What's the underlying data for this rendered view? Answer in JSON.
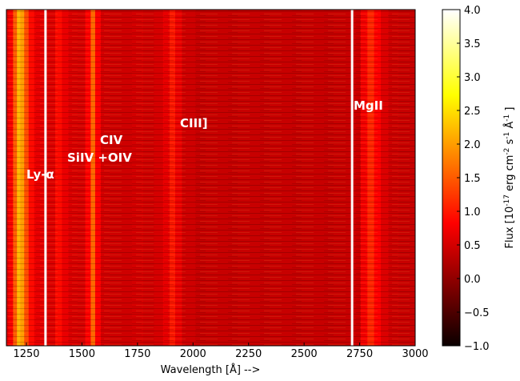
{
  "chart_data": {
    "type": "heatmap",
    "xlabel": "Wavelength [Å] -->",
    "xlim": [
      1160,
      3000
    ],
    "xticks": [
      1250,
      1500,
      1750,
      2000,
      2250,
      2500,
      2750,
      3000
    ],
    "mean_flux": {
      "x": [
        1160,
        1180,
        1200,
        1215,
        1230,
        1250,
        1270,
        1300,
        1360,
        1400,
        1420,
        1460,
        1500,
        1530,
        1549,
        1570,
        1600,
        1650,
        1700,
        1750,
        1800,
        1850,
        1880,
        1909,
        1930,
        1970,
        2050,
        2150,
        2250,
        2350,
        2450,
        2550,
        2650,
        2700,
        2740,
        2770,
        2800,
        2830,
        2860,
        2900,
        2950,
        3000
      ],
      "values": [
        0.6,
        0.8,
        1.5,
        2.2,
        2.0,
        1.4,
        0.9,
        0.6,
        0.5,
        0.9,
        0.6,
        0.5,
        0.45,
        0.8,
        1.6,
        0.8,
        0.45,
        0.4,
        0.4,
        0.45,
        0.4,
        0.45,
        0.6,
        1.0,
        0.6,
        0.4,
        0.35,
        0.35,
        0.35,
        0.35,
        0.35,
        0.35,
        0.35,
        0.35,
        0.4,
        0.7,
        1.1,
        0.8,
        0.5,
        0.4,
        0.35,
        0.35
      ]
    },
    "vlines": [
      1336,
      2716
    ],
    "vline_color": "#ffffff",
    "colormap": "hot",
    "clim": [
      -1,
      4
    ],
    "cticks": [
      {
        "value": -1,
        "label": "−1.0"
      },
      {
        "value": -0.5,
        "label": "−0.5"
      },
      {
        "value": 0,
        "label": "0.0"
      },
      {
        "value": 0.5,
        "label": "0.5"
      },
      {
        "value": 1,
        "label": "1.0"
      },
      {
        "value": 1.5,
        "label": "1.5"
      },
      {
        "value": 2,
        "label": "2.0"
      },
      {
        "value": 2.5,
        "label": "2.5"
      },
      {
        "value": 3,
        "label": "3.0"
      },
      {
        "value": 3.5,
        "label": "3.5"
      },
      {
        "value": 4,
        "label": "4.0"
      }
    ],
    "colorbar_label": [
      "Flux [10",
      "-17",
      " erg cm",
      "-2",
      " s",
      "-1",
      " Å",
      "-1",
      " ]"
    ],
    "annotations": [
      "Ly-α",
      "SiIV +OIV",
      "CIV",
      "CIII]",
      "MgII"
    ]
  }
}
